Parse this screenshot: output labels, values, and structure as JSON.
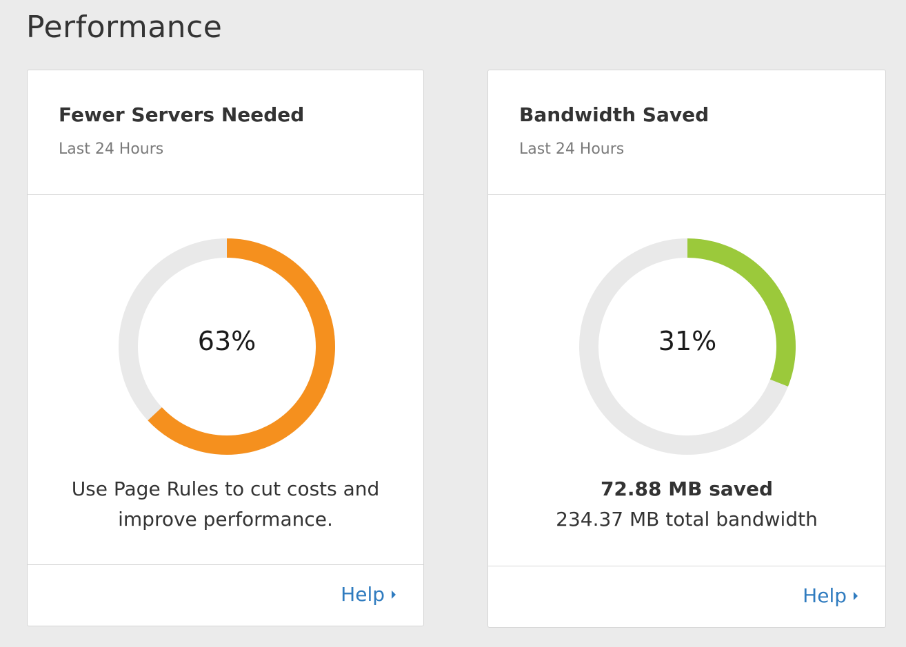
{
  "page": {
    "title": "Performance"
  },
  "cards": [
    {
      "title": "Fewer Servers Needed",
      "subtitle": "Last 24 Hours",
      "percent": 63,
      "percent_label": "63%",
      "color": "#f5901e",
      "message_lines": [
        "Use Page Rules to cut costs and",
        "improve performance."
      ],
      "help_label": "Help"
    },
    {
      "title": "Bandwidth Saved",
      "subtitle": "Last 24 Hours",
      "percent": 31,
      "percent_label": "31%",
      "color": "#9bc93b",
      "saved": "72.88 MB saved",
      "total": "234.37 MB total bandwidth",
      "help_label": "Help"
    }
  ],
  "colors": {
    "track": "#e9e9e9",
    "link": "#2f7bbf"
  }
}
